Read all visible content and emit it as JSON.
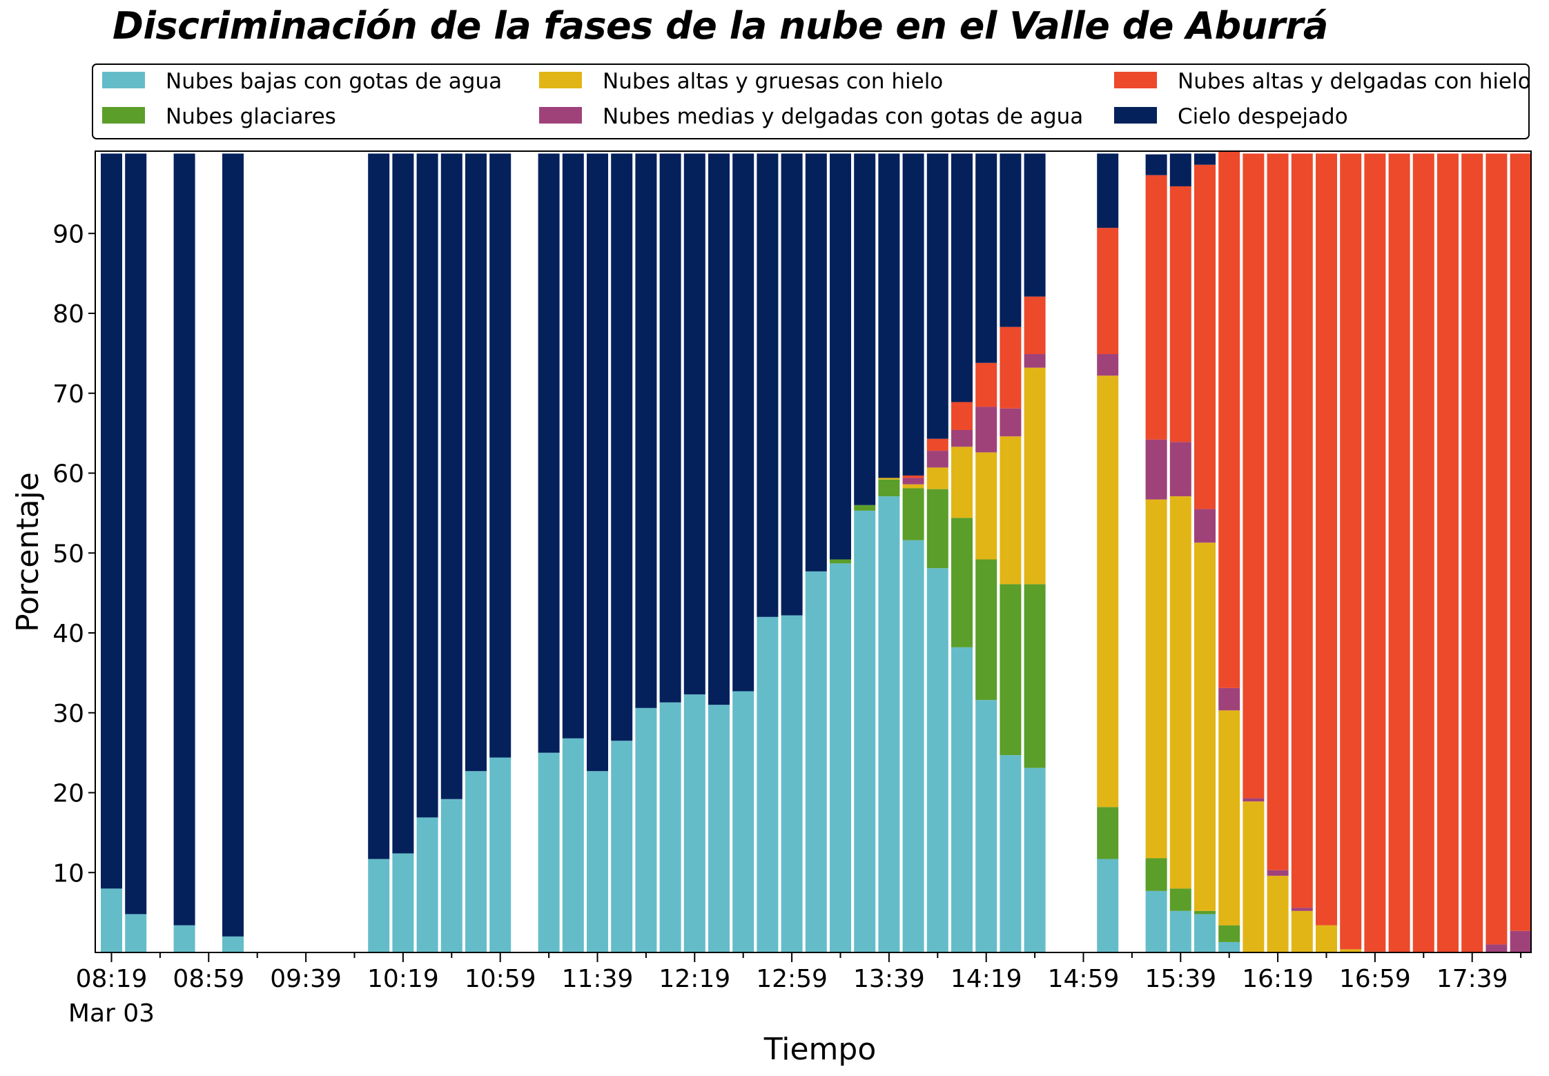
{
  "chart_data": {
    "type": "bar",
    "stacked": true,
    "title": "Discriminación de la fases de la nube en el Valle de Aburrá",
    "xlabel": "Tiempo",
    "ylabel": "Porcentaje",
    "ylim": [
      0,
      100
    ],
    "yticks": [
      10,
      20,
      30,
      40,
      50,
      60,
      70,
      80,
      90
    ],
    "xtick_labels": [
      "08:19",
      "08:59",
      "09:39",
      "10:19",
      "10:59",
      "11:39",
      "12:19",
      "12:59",
      "13:39",
      "14:19",
      "14:59",
      "15:39",
      "16:19",
      "16:59",
      "17:39"
    ],
    "xtick_sublabel": "Mar 03",
    "time_start": "08:19",
    "time_end": "17:59",
    "time_step_minutes": 10,
    "legend_position": "top",
    "categories": [
      "08:19",
      "08:29",
      "08:39",
      "08:49",
      "08:59",
      "09:09",
      "09:19",
      "09:29",
      "09:39",
      "09:49",
      "09:59",
      "10:09",
      "10:19",
      "10:29",
      "10:39",
      "10:49",
      "10:59",
      "11:09",
      "11:19",
      "11:29",
      "11:39",
      "11:49",
      "11:59",
      "12:09",
      "12:19",
      "12:29",
      "12:39",
      "12:49",
      "12:59",
      "13:09",
      "13:19",
      "13:29",
      "13:39",
      "13:49",
      "13:59",
      "14:09",
      "14:19",
      "14:29",
      "14:39",
      "14:49",
      "14:59",
      "15:09",
      "15:19",
      "15:29",
      "15:39",
      "15:49",
      "15:59",
      "16:09",
      "16:19",
      "16:29",
      "16:39",
      "16:49",
      "16:59",
      "17:09",
      "17:19",
      "17:29",
      "17:39",
      "17:49",
      "17:59"
    ],
    "series": [
      {
        "name": "Nubes bajas con gotas de agua",
        "color": "#65BCC9",
        "values": [
          8,
          4.8,
          null,
          3.4,
          null,
          2,
          null,
          null,
          null,
          null,
          null,
          11.7,
          12.4,
          16.9,
          19.2,
          22.7,
          24.4,
          null,
          25,
          26.8,
          22.7,
          26.5,
          30.6,
          31.3,
          32.3,
          31,
          32.7,
          42,
          42.2,
          47.7,
          48.7,
          55.3,
          57.1,
          51.6,
          48.1,
          38.2,
          31.6,
          24.7,
          23.1,
          null,
          null,
          11.7,
          null,
          7.7,
          5.2,
          4.8,
          1.3,
          0,
          0,
          0,
          0,
          0,
          0,
          0,
          0,
          0,
          0,
          0,
          0
        ]
      },
      {
        "name": "Nubes glaciares",
        "color": "#5B9E2A",
        "values": [
          0,
          0,
          null,
          0,
          null,
          0,
          null,
          null,
          null,
          null,
          null,
          0,
          0,
          0,
          0,
          0,
          0,
          null,
          0,
          0,
          0,
          0,
          0,
          0,
          0,
          0,
          0,
          0,
          0,
          0,
          0.5,
          0.7,
          2.1,
          6.5,
          9.9,
          16.2,
          17.6,
          21.4,
          23,
          null,
          null,
          6.5,
          null,
          4.1,
          2.8,
          0.4,
          2.1,
          0,
          0,
          0,
          0,
          0,
          0,
          0,
          0,
          0,
          0,
          0,
          0
        ]
      },
      {
        "name": "Nubes altas y gruesas con hielo",
        "color": "#E2B516",
        "values": [
          0,
          0,
          null,
          0,
          null,
          0,
          null,
          null,
          null,
          null,
          null,
          0,
          0,
          0,
          0,
          0,
          0,
          null,
          0,
          0,
          0,
          0,
          0,
          0,
          0,
          0,
          0,
          0,
          0,
          0,
          0,
          0,
          0.2,
          0.5,
          2.7,
          8.9,
          13.4,
          18.5,
          27.1,
          null,
          null,
          54,
          null,
          44.9,
          49.1,
          46.1,
          26.9,
          18.9,
          9.6,
          5.2,
          3.4,
          0.4,
          0.1,
          0,
          0,
          0,
          0,
          0,
          0
        ]
      },
      {
        "name": "Nubes medias y delgadas con gotas de agua",
        "color": "#A0427A",
        "values": [
          0,
          0,
          null,
          0,
          null,
          0,
          null,
          null,
          null,
          null,
          null,
          0,
          0,
          0,
          0,
          0,
          0,
          null,
          0,
          0,
          0,
          0,
          0,
          0,
          0,
          0,
          0,
          0,
          0,
          0,
          0,
          0,
          0,
          0.8,
          2.1,
          2.1,
          5.7,
          3.5,
          1.7,
          null,
          null,
          2.7,
          null,
          7.5,
          6.8,
          4.2,
          2.8,
          0.4,
          0.7,
          0.4,
          0,
          0,
          0,
          0,
          0,
          0,
          0,
          1,
          2.7
        ]
      },
      {
        "name": "Nubes altas y delgadas con hielo",
        "color": "#EC4A2B",
        "values": [
          0,
          0,
          null,
          0,
          null,
          0,
          null,
          null,
          null,
          null,
          null,
          0,
          0,
          0,
          0,
          0,
          0,
          null,
          0,
          0,
          0,
          0,
          0,
          0,
          0,
          0,
          0,
          0,
          0,
          0,
          0,
          0,
          0,
          0.3,
          1.5,
          3.5,
          5.5,
          10.2,
          7.2,
          null,
          null,
          15.8,
          null,
          33.1,
          32,
          43.1,
          67.2,
          80.7,
          89.7,
          94.4,
          96.6,
          99.6,
          99.9,
          100,
          100,
          100,
          100,
          99,
          97.3
        ]
      },
      {
        "name": "Cielo despejado",
        "color": "#04215C",
        "values": [
          92,
          95.2,
          null,
          96.6,
          null,
          98,
          null,
          null,
          null,
          null,
          null,
          88.3,
          87.6,
          83.1,
          80.8,
          77.3,
          75.6,
          null,
          75,
          73.2,
          77.3,
          73.5,
          69.4,
          68.7,
          67.7,
          69,
          67.3,
          58,
          57.8,
          52.3,
          50.8,
          44,
          40.6,
          40.3,
          35.7,
          31.1,
          26.2,
          21.7,
          17.9,
          null,
          null,
          9.3,
          null,
          2.6,
          4.1,
          1.4,
          0,
          0,
          0,
          0,
          0,
          0,
          0,
          0,
          0,
          0,
          0,
          0,
          0
        ]
      }
    ]
  }
}
